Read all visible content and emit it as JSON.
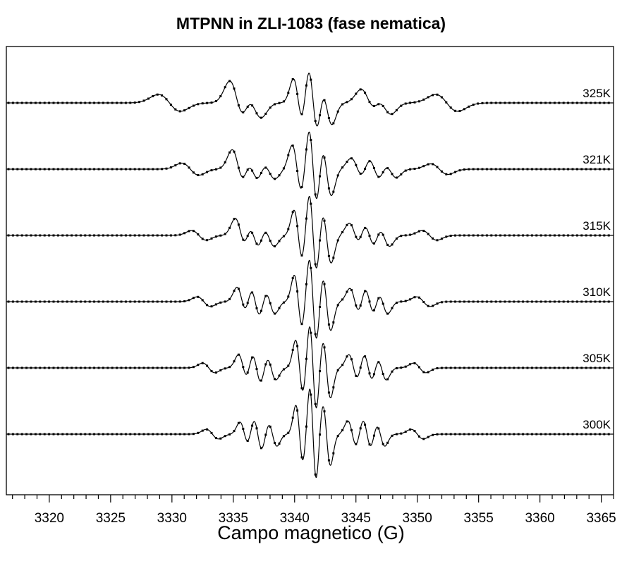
{
  "chart_data": {
    "type": "line",
    "title": "MTPNN in ZLI-1083 (fase nematica)",
    "xlabel": "Campo magnetico (G)",
    "ylabel": "",
    "xlim": [
      3316.5,
      3366
    ],
    "x_ticks": [
      3320,
      3325,
      3330,
      3335,
      3340,
      3345,
      3350,
      3355,
      3360,
      3365
    ],
    "x_tick_labels": [
      "3320",
      "3325",
      "3330",
      "3335",
      "3340",
      "3345",
      "3350",
      "3355",
      "3360",
      "3365"
    ],
    "x_minor_step": 1,
    "grid": false,
    "legend": "none",
    "line_styles": {
      "experimental": "solid",
      "simulated": "dotted with square markers"
    },
    "colors": {
      "line": "#000000",
      "axis": "#000000",
      "background": "#ffffff"
    },
    "series": [
      {
        "name": "325K",
        "temperature_K": 325,
        "derivative_lines": [
          {
            "x": 3329.8,
            "a": 0.35,
            "w": 0.9
          },
          {
            "x": 3335.3,
            "a": 0.9,
            "w": 0.6
          },
          {
            "x": 3336.7,
            "a": 0.6,
            "w": 0.6
          },
          {
            "x": 3340.3,
            "a": 1.0,
            "w": 0.4
          },
          {
            "x": 3341.5,
            "a": 1.6,
            "w": 0.4
          },
          {
            "x": 3342.6,
            "a": 0.9,
            "w": 0.45
          },
          {
            "x": 3346.0,
            "a": 0.55,
            "w": 0.6
          },
          {
            "x": 3347.3,
            "a": 0.45,
            "w": 0.6
          },
          {
            "x": 3352.4,
            "a": 0.35,
            "w": 0.9
          }
        ]
      },
      {
        "name": "321K",
        "temperature_K": 321,
        "derivative_lines": [
          {
            "x": 3331.5,
            "a": 0.25,
            "w": 0.7
          },
          {
            "x": 3335.4,
            "a": 0.8,
            "w": 0.5
          },
          {
            "x": 3336.6,
            "a": 0.6,
            "w": 0.5
          },
          {
            "x": 3337.9,
            "a": 0.4,
            "w": 0.5
          },
          {
            "x": 3340.2,
            "a": 1.0,
            "w": 0.4
          },
          {
            "x": 3341.5,
            "a": 1.75,
            "w": 0.35
          },
          {
            "x": 3342.6,
            "a": 1.1,
            "w": 0.4
          },
          {
            "x": 3345.1,
            "a": 0.45,
            "w": 0.5
          },
          {
            "x": 3346.5,
            "a": 0.55,
            "w": 0.5
          },
          {
            "x": 3347.8,
            "a": 0.35,
            "w": 0.5
          },
          {
            "x": 3351.8,
            "a": 0.22,
            "w": 0.7
          }
        ]
      },
      {
        "name": "315K",
        "temperature_K": 315,
        "derivative_lines": [
          {
            "x": 3332.2,
            "a": 0.2,
            "w": 0.6
          },
          {
            "x": 3335.6,
            "a": 0.7,
            "w": 0.45
          },
          {
            "x": 3336.7,
            "a": 0.65,
            "w": 0.45
          },
          {
            "x": 3337.9,
            "a": 0.45,
            "w": 0.45
          },
          {
            "x": 3340.3,
            "a": 1.05,
            "w": 0.35
          },
          {
            "x": 3341.5,
            "a": 1.8,
            "w": 0.33
          },
          {
            "x": 3342.6,
            "a": 1.15,
            "w": 0.38
          },
          {
            "x": 3344.9,
            "a": 0.5,
            "w": 0.45
          },
          {
            "x": 3346.1,
            "a": 0.6,
            "w": 0.45
          },
          {
            "x": 3347.3,
            "a": 0.45,
            "w": 0.45
          },
          {
            "x": 3351.0,
            "a": 0.2,
            "w": 0.6
          }
        ]
      },
      {
        "name": "310K",
        "temperature_K": 310,
        "derivative_lines": [
          {
            "x": 3332.6,
            "a": 0.2,
            "w": 0.55
          },
          {
            "x": 3335.7,
            "a": 0.6,
            "w": 0.4
          },
          {
            "x": 3336.8,
            "a": 0.7,
            "w": 0.4
          },
          {
            "x": 3338.0,
            "a": 0.5,
            "w": 0.4
          },
          {
            "x": 3340.3,
            "a": 1.1,
            "w": 0.33
          },
          {
            "x": 3341.5,
            "a": 1.85,
            "w": 0.32
          },
          {
            "x": 3342.6,
            "a": 1.2,
            "w": 0.35
          },
          {
            "x": 3344.9,
            "a": 0.55,
            "w": 0.4
          },
          {
            "x": 3346.1,
            "a": 0.65,
            "w": 0.4
          },
          {
            "x": 3347.2,
            "a": 0.5,
            "w": 0.4
          },
          {
            "x": 3350.5,
            "a": 0.2,
            "w": 0.55
          }
        ]
      },
      {
        "name": "305K",
        "temperature_K": 305,
        "derivative_lines": [
          {
            "x": 3333.0,
            "a": 0.2,
            "w": 0.5
          },
          {
            "x": 3335.8,
            "a": 0.55,
            "w": 0.38
          },
          {
            "x": 3336.9,
            "a": 0.7,
            "w": 0.38
          },
          {
            "x": 3338.1,
            "a": 0.5,
            "w": 0.38
          },
          {
            "x": 3340.4,
            "a": 1.15,
            "w": 0.32
          },
          {
            "x": 3341.5,
            "a": 1.9,
            "w": 0.3
          },
          {
            "x": 3342.6,
            "a": 1.25,
            "w": 0.33
          },
          {
            "x": 3344.8,
            "a": 0.55,
            "w": 0.38
          },
          {
            "x": 3346.0,
            "a": 0.65,
            "w": 0.38
          },
          {
            "x": 3347.1,
            "a": 0.5,
            "w": 0.38
          },
          {
            "x": 3350.2,
            "a": 0.2,
            "w": 0.5
          }
        ]
      },
      {
        "name": "300K",
        "temperature_K": 300,
        "derivative_lines": [
          {
            "x": 3333.3,
            "a": 0.2,
            "w": 0.5
          },
          {
            "x": 3335.9,
            "a": 0.5,
            "w": 0.36
          },
          {
            "x": 3337.0,
            "a": 0.7,
            "w": 0.36
          },
          {
            "x": 3338.2,
            "a": 0.5,
            "w": 0.36
          },
          {
            "x": 3340.4,
            "a": 1.2,
            "w": 0.3
          },
          {
            "x": 3341.5,
            "a": 2.0,
            "w": 0.28
          },
          {
            "x": 3342.6,
            "a": 1.3,
            "w": 0.32
          },
          {
            "x": 3344.7,
            "a": 0.55,
            "w": 0.36
          },
          {
            "x": 3345.9,
            "a": 0.65,
            "w": 0.36
          },
          {
            "x": 3347.0,
            "a": 0.5,
            "w": 0.36
          },
          {
            "x": 3350.0,
            "a": 0.2,
            "w": 0.5
          }
        ]
      }
    ]
  }
}
